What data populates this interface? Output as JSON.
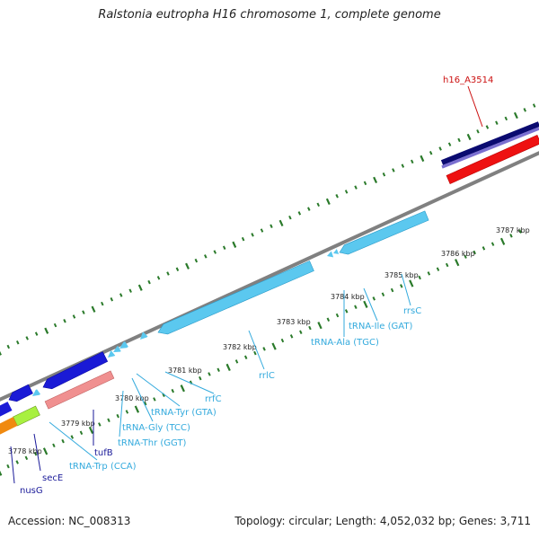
{
  "title": "Ralstonia eutropha H16 chromosome 1, complete genome",
  "footer": {
    "accession": "Accession: NC_008313",
    "summary": "Topology: circular; Length: 4,052,032 bp; Genes: 3,711"
  },
  "colors": {
    "tick": "#2a7a2a",
    "backbone": "#808080",
    "rna": "#5bc8ef",
    "gene_blue": "#1a1ad6",
    "navy": "#0a0a70",
    "purple": "#7a6fd0",
    "red": "#ee1111",
    "pink": "#f09090",
    "orange": "#f08a10",
    "lime": "#a8f040",
    "label_rna": "#33aadd",
    "label_gene": "#1a1a99",
    "label_red": "#cc1111",
    "tick_label": "#222222"
  },
  "kbp_labels": [
    {
      "text": "3778 kbp"
    },
    {
      "text": "3779 kbp"
    },
    {
      "text": "3780 kbp"
    },
    {
      "text": "3781 kbp"
    },
    {
      "text": "3782 kbp"
    },
    {
      "text": "3783 kbp"
    },
    {
      "text": "3784 kbp"
    },
    {
      "text": "3785 kbp"
    },
    {
      "text": "3786 kbp"
    },
    {
      "text": "3787 kbp"
    }
  ],
  "feature_labels": [
    {
      "text": "h16_A3514",
      "kind": "red"
    },
    {
      "text": "rrsC",
      "kind": "rna"
    },
    {
      "text": "tRNA-Ile (GAT)",
      "kind": "rna"
    },
    {
      "text": "tRNA-Ala (TGC)",
      "kind": "rna"
    },
    {
      "text": "rrlC",
      "kind": "rna"
    },
    {
      "text": "rrfC",
      "kind": "rna"
    },
    {
      "text": "tRNA-Tyr (GTA)",
      "kind": "rna"
    },
    {
      "text": "tRNA-Gly (TCC)",
      "kind": "rna"
    },
    {
      "text": "tRNA-Thr (GGT)",
      "kind": "rna"
    },
    {
      "text": "tRNA-Trp (CCA)",
      "kind": "rna"
    },
    {
      "text": "tufB",
      "kind": "gene"
    },
    {
      "text": "secE",
      "kind": "gene"
    },
    {
      "text": "nusG",
      "kind": "gene"
    }
  ]
}
